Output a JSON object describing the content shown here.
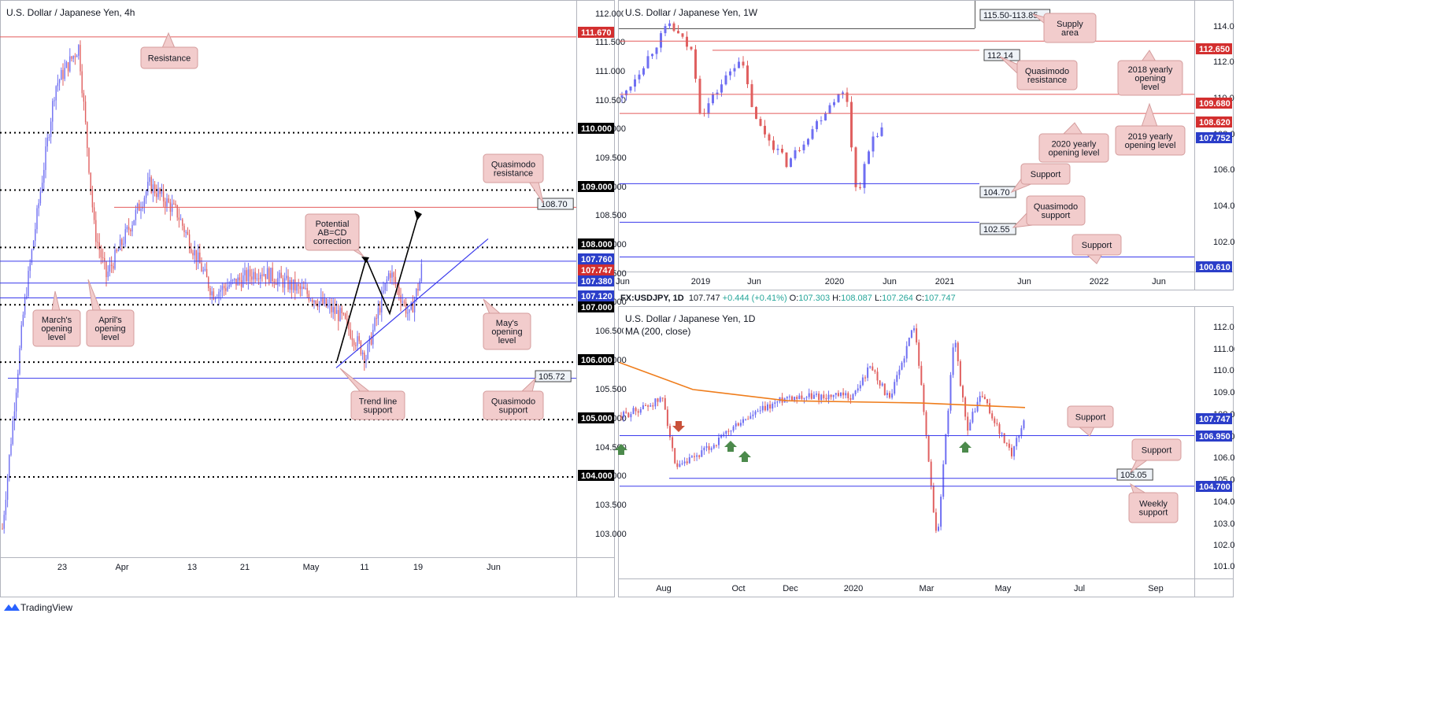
{
  "colors": {
    "bull": "#6f6ff2",
    "bear": "#e06060",
    "resistance_line": "#e45b5b",
    "support_line": "#3a3aec",
    "dotted_line": "#000000",
    "ma": "#ef7d1c",
    "callout_bg": "#f2cccc",
    "callout_border": "#d49c9c",
    "tag_red": "#d32f2f",
    "tag_blue": "#2b3ec9",
    "tag_black": "#000000",
    "arrow_green": "#4c8a4c",
    "arrow_red": "#c9513a"
  },
  "footer": {
    "brand": "TradingView",
    "logo_icon": "tradingview-logo-icon"
  },
  "panels": [
    {
      "id": "h4",
      "title": "U.S. Dollar / Japanese Yen, 4h",
      "y_ticks": [
        "112.000",
        "111.500",
        "111.000",
        "110.500",
        "110.000",
        "109.500",
        "109.000",
        "108.500",
        "108.000",
        "107.500",
        "107.000",
        "106.500",
        "106.000",
        "105.500",
        "105.000",
        "104.500",
        "104.000",
        "103.500",
        "103.000"
      ],
      "x_ticks": [
        "23",
        "Apr",
        "13",
        "21",
        "May",
        "11",
        "19",
        "Jun"
      ],
      "price_tags": [
        {
          "label": "111.670",
          "style": "red"
        },
        {
          "label": "110.000",
          "style": "black"
        },
        {
          "label": "109.000",
          "style": "black"
        },
        {
          "label": "108.70",
          "style": "box"
        },
        {
          "label": "108.000",
          "style": "black"
        },
        {
          "label": "107.760",
          "style": "blue"
        },
        {
          "label": "107.747",
          "style": "red"
        },
        {
          "label": "107.380",
          "style": "blue"
        },
        {
          "label": "107.120",
          "style": "blue"
        },
        {
          "label": "107.000",
          "style": "black"
        },
        {
          "label": "106.000",
          "style": "black"
        },
        {
          "label": "105.72",
          "style": "box"
        },
        {
          "label": "105.000",
          "style": "black"
        },
        {
          "label": "104.000",
          "style": "black"
        }
      ],
      "callouts": [
        {
          "lines": [
            "Resistance"
          ]
        },
        {
          "lines": [
            "Quasimodo",
            "resistance"
          ]
        },
        {
          "lines": [
            "Potential",
            "AB=CD",
            "correction"
          ]
        },
        {
          "lines": [
            "March's",
            "opening",
            "level"
          ]
        },
        {
          "lines": [
            "April's",
            "opening",
            "level"
          ]
        },
        {
          "lines": [
            "May's",
            "opening",
            "level"
          ]
        },
        {
          "lines": [
            "Trend line",
            "support"
          ]
        },
        {
          "lines": [
            "Quasimodo",
            "support"
          ]
        }
      ]
    },
    {
      "id": "w1",
      "title": "U.S. Dollar / Japanese Yen, 1W",
      "y_ticks": [
        "114.000",
        "112.000",
        "110.000",
        "108.000",
        "106.000",
        "104.000",
        "102.000"
      ],
      "x_ticks": [
        "Jun",
        "2019",
        "Jun",
        "2020",
        "Jun",
        "2021",
        "Jun",
        "2022",
        "Jun"
      ],
      "price_tags": [
        {
          "label": "115.50-113.85",
          "style": "box"
        },
        {
          "label": "112.14",
          "style": "box"
        },
        {
          "label": "112.650",
          "style": "red"
        },
        {
          "label": "109.680",
          "style": "red"
        },
        {
          "label": "108.620",
          "style": "red"
        },
        {
          "label": "107.752",
          "style": "blue"
        },
        {
          "label": "104.70",
          "style": "box"
        },
        {
          "label": "102.55",
          "style": "box"
        },
        {
          "label": "100.610",
          "style": "blue"
        }
      ],
      "callouts": [
        {
          "lines": [
            "Supply",
            "area"
          ]
        },
        {
          "lines": [
            "Quasimodo",
            "resistance"
          ]
        },
        {
          "lines": [
            "2018 yearly",
            "opening",
            "level"
          ]
        },
        {
          "lines": [
            "2020 yearly",
            "opening level"
          ]
        },
        {
          "lines": [
            "2019 yearly",
            "opening level"
          ]
        },
        {
          "lines": [
            "Support"
          ]
        },
        {
          "lines": [
            "Quasimodo",
            "support"
          ]
        },
        {
          "lines": [
            "Support"
          ]
        }
      ]
    },
    {
      "id": "d1",
      "title": "U.S. Dollar / Japanese Yen, 1D",
      "ma_label": "MA (200, close)",
      "y_ticks": [
        "112.000",
        "111.000",
        "110.000",
        "109.000",
        "108.000",
        "107.000",
        "106.000",
        "105.000",
        "104.000",
        "103.000",
        "102.000",
        "101.000"
      ],
      "x_ticks": [
        "Aug",
        "Oct",
        "Dec",
        "2020",
        "Mar",
        "May",
        "Jul",
        "Sep"
      ],
      "price_tags": [
        {
          "label": "107.747",
          "style": "blue"
        },
        {
          "label": "106.950",
          "style": "blue"
        },
        {
          "label": "105.05",
          "style": "box"
        },
        {
          "label": "104.700",
          "style": "blue"
        }
      ],
      "callouts": [
        {
          "lines": [
            "Support"
          ]
        },
        {
          "lines": [
            "Support"
          ]
        },
        {
          "lines": [
            "Weekly",
            "support"
          ]
        }
      ]
    }
  ],
  "ohlc_bar": {
    "symbol": "FX:USDJPY, 1D",
    "last": "107.747",
    "change": "+0.444 (+0.41%)",
    "o_label": "O:",
    "o": "107.303",
    "h_label": "H:",
    "h": "108.087",
    "l_label": "L:",
    "l": "107.264",
    "c_label": "C:",
    "c": "107.747"
  },
  "chart_data": [
    {
      "type": "candlestick",
      "title": "U.S. Dollar / Japanese Yen, 4h",
      "timeframe": "4h",
      "ylim": [
        102.6,
        112.3
      ],
      "x_tick_labels": [
        "23",
        "Apr",
        "13",
        "21",
        "May",
        "11",
        "19",
        "Jun"
      ],
      "path_knots": [
        {
          "x": "Mar 09",
          "y": 103.1
        },
        {
          "x": "Mar 13",
          "y": 106.9
        },
        {
          "x": "Mar 20",
          "y": 110.8
        },
        {
          "x": "Mar 24",
          "y": 111.5
        },
        {
          "x": "Mar 27",
          "y": 108.3
        },
        {
          "x": "Mar 31",
          "y": 107.5
        },
        {
          "x": "Apr 06",
          "y": 109.1
        },
        {
          "x": "Apr 09",
          "y": 108.6
        },
        {
          "x": "Apr 14",
          "y": 107.2
        },
        {
          "x": "Apr 20",
          "y": 107.6
        },
        {
          "x": "Apr 27",
          "y": 107.2
        },
        {
          "x": "May 01",
          "y": 106.8
        },
        {
          "x": "May 06",
          "y": 106.1
        },
        {
          "x": "May 11",
          "y": 107.6
        },
        {
          "x": "May 14",
          "y": 106.8
        },
        {
          "x": "May 18",
          "y": 107.4
        },
        {
          "x": "May 19",
          "y": 107.8
        },
        {
          "x": "May 20",
          "y": 107.75
        }
      ],
      "levels": [
        {
          "name": "Resistance",
          "value": 111.67
        },
        {
          "name": "Quasimodo resistance",
          "value": 108.7
        },
        {
          "name": "March's opening level",
          "value": 107.76
        },
        {
          "name": "April's opening level",
          "value": 107.38
        },
        {
          "name": "May's opening level",
          "value": 107.12
        },
        {
          "name": "Quasimodo support",
          "value": 105.72
        },
        {
          "name": "Last",
          "value": 107.747
        }
      ],
      "round_numbers": [
        110.0,
        109.0,
        108.0,
        107.0,
        106.0,
        105.0,
        104.0
      ],
      "annotations": [
        "Potential AB=CD correction",
        "Trend line support"
      ]
    },
    {
      "type": "candlestick",
      "title": "U.S. Dollar / Japanese Yen, 1W",
      "timeframe": "1W",
      "ylim": [
        99.8,
        114.9
      ],
      "x_tick_labels": [
        "Jun",
        "2019",
        "Jun",
        "2020",
        "Jun",
        "2021",
        "Jun",
        "2022",
        "Jun"
      ],
      "path_knots": [
        {
          "x": "2018-06",
          "y": 109.5
        },
        {
          "x": "2018-10",
          "y": 113.6
        },
        {
          "x": "2018-12",
          "y": 112.0
        },
        {
          "x": "2019-01",
          "y": 108.5
        },
        {
          "x": "2019-04",
          "y": 111.8
        },
        {
          "x": "2019-06",
          "y": 108.2
        },
        {
          "x": "2019-08",
          "y": 105.8
        },
        {
          "x": "2019-12",
          "y": 109.5
        },
        {
          "x": "2020-02",
          "y": 109.8
        },
        {
          "x": "2020-03",
          "y": 104.0
        },
        {
          "x": "2020-04",
          "y": 107.5
        },
        {
          "x": "2020-05",
          "y": 107.75
        }
      ],
      "levels": [
        {
          "name": "Supply area",
          "value": "115.50-113.85"
        },
        {
          "name": "2018 yearly opening level",
          "value": 112.65
        },
        {
          "name": "Quasimodo resistance",
          "value": 112.14
        },
        {
          "name": "2019 yearly opening level",
          "value": 109.68
        },
        {
          "name": "2020 yearly opening level",
          "value": 108.62
        },
        {
          "name": "Support",
          "value": 104.7
        },
        {
          "name": "Quasimodo support",
          "value": 102.55
        },
        {
          "name": "Support",
          "value": 100.61
        },
        {
          "name": "Last",
          "value": 107.752
        }
      ]
    },
    {
      "type": "candlestick",
      "title": "U.S. Dollar / Japanese Yen, 1D",
      "timeframe": "1D",
      "ylim": [
        100.6,
        112.6
      ],
      "x_tick_labels": [
        "Aug",
        "Oct",
        "Dec",
        "2020",
        "Mar",
        "May",
        "Jul",
        "Sep"
      ],
      "path_knots": [
        {
          "x": "2019-07-01",
          "y": 107.8
        },
        {
          "x": "2019-07-31",
          "y": 108.6
        },
        {
          "x": "2019-08-12",
          "y": 105.4
        },
        {
          "x": "2019-09-01",
          "y": 106.5
        },
        {
          "x": "2019-10-01",
          "y": 107.5
        },
        {
          "x": "2019-11-01",
          "y": 108.7
        },
        {
          "x": "2019-12-31",
          "y": 108.7
        },
        {
          "x": "2020-01-17",
          "y": 110.1
        },
        {
          "x": "2020-01-31",
          "y": 108.5
        },
        {
          "x": "2020-02-20",
          "y": 112.0
        },
        {
          "x": "2020-03-09",
          "y": 102.2
        },
        {
          "x": "2020-03-24",
          "y": 111.4
        },
        {
          "x": "2020-04-01",
          "y": 107.2
        },
        {
          "x": "2020-04-10",
          "y": 108.8
        },
        {
          "x": "2020-05-06",
          "y": 106.1
        },
        {
          "x": "2020-05-20",
          "y": 107.75
        }
      ],
      "series": [
        {
          "name": "MA (200, close)",
          "type": "line",
          "points": [
            {
              "x": "2019-07-01",
              "y": 110.2
            },
            {
              "x": "2019-09-01",
              "y": 109.0
            },
            {
              "x": "2019-12-01",
              "y": 108.5
            },
            {
              "x": "2020-03-01",
              "y": 108.4
            },
            {
              "x": "2020-05-20",
              "y": 108.2
            }
          ]
        }
      ],
      "levels": [
        {
          "name": "Support",
          "value": 106.95
        },
        {
          "name": "Support",
          "value": 105.05
        },
        {
          "name": "Weekly support",
          "value": 104.7
        },
        {
          "name": "Last",
          "value": 107.747
        }
      ],
      "markers": [
        {
          "x": "2019-08-02",
          "dir": "down"
        },
        {
          "x": "2019-09-25",
          "dir": "up"
        },
        {
          "x": "2019-10-04",
          "dir": "up"
        },
        {
          "x": "2020-03-31",
          "dir": "up"
        },
        {
          "x": "2019-07-01",
          "dir": "up"
        }
      ]
    }
  ]
}
